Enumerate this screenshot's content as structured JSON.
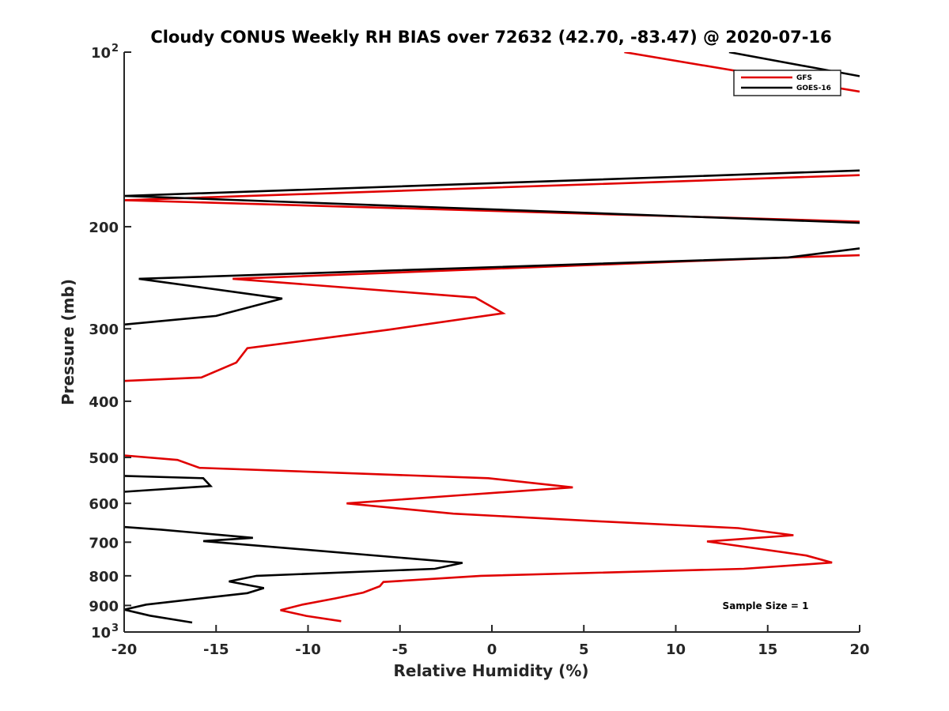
{
  "chart_data": {
    "type": "line",
    "title": "Cloudy CONUS Weekly RH BIAS over 72632 (42.70, -83.47) @ 2020-07-16",
    "xlabel": "Relative Humidity (%)",
    "ylabel": "Pressure (mb)",
    "xlim": [
      -20,
      20
    ],
    "ylim": [
      100,
      1000
    ],
    "y_scale": "log",
    "y_reversed": true,
    "grid": false,
    "legend_position": "top-right",
    "x_ticks": [
      {
        "value": -20,
        "label": "-20"
      },
      {
        "value": -15,
        "label": "-15"
      },
      {
        "value": -10,
        "label": "-10"
      },
      {
        "value": -5,
        "label": "-5"
      },
      {
        "value": 0,
        "label": "0"
      },
      {
        "value": 5,
        "label": "5"
      },
      {
        "value": 10,
        "label": "10"
      },
      {
        "value": 15,
        "label": "15"
      },
      {
        "value": 20,
        "label": "20"
      }
    ],
    "y_ticks": [
      {
        "value": 100,
        "label": "10",
        "sup": "2"
      },
      {
        "value": 200,
        "label": "200"
      },
      {
        "value": 300,
        "label": "300"
      },
      {
        "value": 400,
        "label": "400"
      },
      {
        "value": 500,
        "label": "500"
      },
      {
        "value": 600,
        "label": "600"
      },
      {
        "value": 700,
        "label": "700"
      },
      {
        "value": 800,
        "label": "800"
      },
      {
        "value": 900,
        "label": "900"
      },
      {
        "value": 1000,
        "label": "10",
        "sup": "3"
      }
    ],
    "annotation": "Sample Size = 1",
    "series": [
      {
        "name": "GFS",
        "color": "#e00000",
        "segments": [
          [
            [
              7.2,
              100
            ],
            [
              20,
              117
            ]
          ],
          [
            [
              20,
              163
            ],
            [
              -20,
              180
            ],
            [
              20,
              196
            ]
          ],
          [
            [
              20,
              224
            ],
            [
              16.1,
              226
            ],
            [
              -14.1,
              246
            ],
            [
              -0.9,
              265
            ],
            [
              0.6,
              282
            ],
            [
              -5.6,
              301
            ],
            [
              -13.3,
              324
            ],
            [
              -13.9,
              343
            ],
            [
              -15.8,
              364
            ],
            [
              -20,
              369
            ]
          ],
          [
            [
              -20,
              496
            ],
            [
              -17.1,
              505
            ],
            [
              -15.9,
              521
            ],
            [
              -0.2,
              543
            ],
            [
              4.4,
              563
            ],
            [
              -2.1,
              582
            ],
            [
              -7.9,
              600
            ],
            [
              -2.1,
              625
            ],
            [
              6.1,
              645
            ],
            [
              13.4,
              662
            ],
            [
              16.4,
              681
            ],
            [
              11.7,
              698
            ],
            [
              17.1,
              738
            ],
            [
              18.5,
              759
            ],
            [
              13.7,
              778
            ],
            [
              -0.6,
              800
            ],
            [
              -5.9,
              820
            ],
            [
              -6.1,
              834
            ],
            [
              -7.0,
              855
            ],
            [
              -8.5,
              875
            ],
            [
              -10.3,
              897
            ],
            [
              -11.5,
              917
            ],
            [
              -10.1,
              938
            ],
            [
              -8.2,
              958
            ]
          ]
        ]
      },
      {
        "name": "GOES-16",
        "color": "#000000",
        "segments": [
          [
            [
              12.9,
              100
            ],
            [
              20,
              110
            ]
          ],
          [
            [
              20,
              160
            ],
            [
              -20,
              177
            ],
            [
              20,
              197
            ]
          ],
          [
            [
              20,
              218
            ],
            [
              16.1,
              226
            ],
            [
              -19.2,
              246
            ],
            [
              -11.4,
              266
            ],
            [
              -15.0,
              285
            ],
            [
              -20,
              295
            ]
          ],
          [
            [
              -20,
              538
            ],
            [
              -15.7,
              543
            ],
            [
              -15.3,
              560
            ],
            [
              -20,
              573
            ]
          ],
          [
            [
              -20,
              659
            ],
            [
              -18.0,
              666
            ],
            [
              -13.0,
              688
            ],
            [
              -15.7,
              697
            ],
            [
              -1.6,
              760
            ],
            [
              -3.1,
              778
            ],
            [
              -12.8,
              800
            ],
            [
              -14.3,
              818
            ],
            [
              -12.4,
              840
            ],
            [
              -13.3,
              857
            ],
            [
              -18.8,
              897
            ],
            [
              -20.0,
              915
            ],
            [
              -18.6,
              937
            ],
            [
              -16.3,
              963
            ]
          ]
        ]
      }
    ]
  }
}
